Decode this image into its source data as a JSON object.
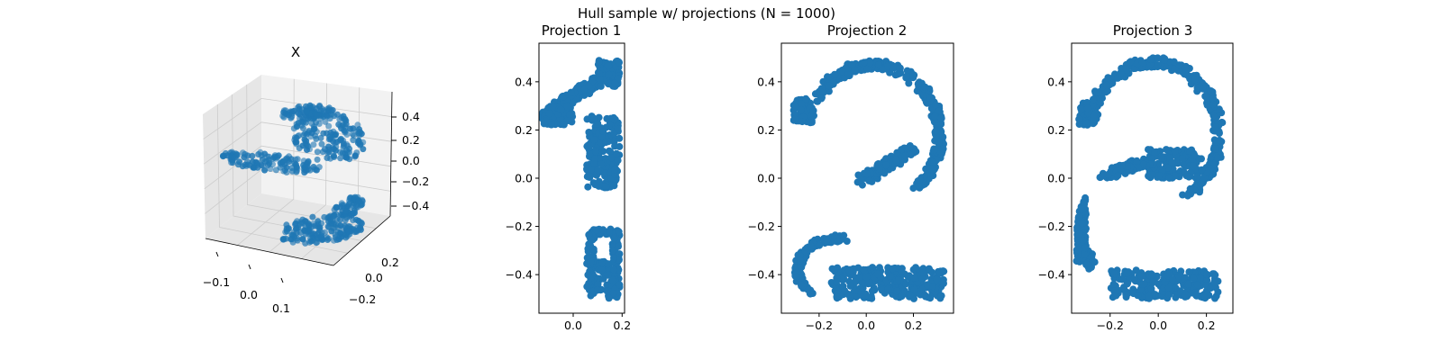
{
  "figure": {
    "suptitle": "Hull sample w/ projections (N = 1000)"
  },
  "colors": {
    "points": "#1f77b4",
    "axis": "#000000",
    "pane": "#f2f2f2",
    "pane_dark": "#e6e6e6",
    "grid": "#cccccc"
  },
  "chart_data": [
    {
      "type": "scatter",
      "dimensions": 3,
      "title": "X",
      "n_points": 1000,
      "xticks": [
        "−0.1",
        "0.0",
        "0.1"
      ],
      "yticks": [
        "−0.2",
        "0.0",
        "0.2"
      ],
      "zticks": [
        "−0.4",
        "−0.2",
        "0.0",
        "0.2",
        "0.4"
      ],
      "xlim": [
        -0.15,
        0.2
      ],
      "ylim": [
        -0.3,
        0.3
      ],
      "zlim": [
        -0.5,
        0.5
      ],
      "grid": true
    },
    {
      "type": "scatter",
      "title": "Projection 1",
      "shape": "digit 1",
      "xlim": [
        -0.14,
        0.21
      ],
      "ylim": [
        -0.56,
        0.56
      ],
      "xticks": [
        "0.0",
        "0.2"
      ],
      "yticks": [
        "0.4",
        "0.2",
        "0.0",
        "−0.2",
        "−0.4"
      ],
      "clusters": [
        {
          "x": [
            -0.12,
            0.19
          ],
          "y": [
            0.21,
            0.49
          ],
          "note": "diagonal flag"
        },
        {
          "x": [
            0.05,
            0.19
          ],
          "y": [
            -0.04,
            0.26
          ]
        },
        {
          "x": [
            0.05,
            0.19
          ],
          "y": [
            -0.5,
            -0.2
          ]
        }
      ]
    },
    {
      "type": "scatter",
      "title": "Projection 2",
      "shape": "digit 2",
      "xlim": [
        -0.36,
        0.37
      ],
      "ylim": [
        -0.56,
        0.56
      ],
      "xticks": [
        "−0.2",
        "0.0",
        "0.2"
      ],
      "yticks": [
        "0.4",
        "0.2",
        "0.0",
        "−0.2",
        "−0.4"
      ],
      "clusters": [
        {
          "x": [
            -0.31,
            0.33
          ],
          "y": [
            -0.02,
            0.49
          ],
          "note": "upper arc"
        },
        {
          "x": [
            -0.3,
            0.33
          ],
          "y": [
            -0.5,
            -0.21
          ],
          "note": "bottom hook"
        }
      ]
    },
    {
      "type": "scatter",
      "title": "Projection 3",
      "shape": "digit 3",
      "xlim": [
        -0.36,
        0.31
      ],
      "ylim": [
        -0.56,
        0.56
      ],
      "xticks": [
        "−0.2",
        "0.0",
        "0.2"
      ],
      "yticks": [
        "0.4",
        "0.2",
        "0.0",
        "−0.2",
        "−0.4"
      ],
      "clusters": [
        {
          "x": [
            -0.33,
            0.27
          ],
          "y": [
            -0.02,
            0.49
          ],
          "note": "upper arc"
        },
        {
          "x": [
            -0.34,
            0.25
          ],
          "y": [
            -0.5,
            -0.22
          ],
          "note": "lower arc"
        }
      ]
    }
  ]
}
